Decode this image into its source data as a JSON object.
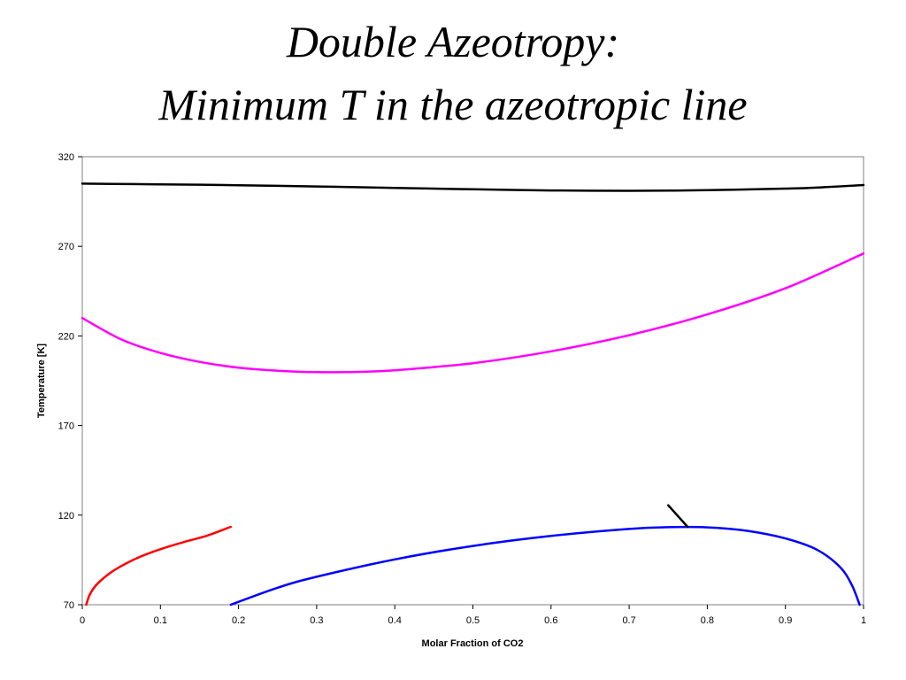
{
  "title_lines": [
    "Double Azeotropy:",
    "Minimum T in the azeotropic line"
  ],
  "chart_data": {
    "type": "line",
    "xlabel": "Molar Fraction of CO2",
    "ylabel": "Temperature [K]",
    "xlim": [
      0,
      1
    ],
    "ylim": [
      70,
      320
    ],
    "xticks": [
      "0",
      "0.1",
      "0.2",
      "0.3",
      "0.4",
      "0.5",
      "0.6",
      "0.7",
      "0.8",
      "0.9",
      "1"
    ],
    "yticks": [
      "70",
      "120",
      "170",
      "220",
      "270",
      "320"
    ],
    "grid": false,
    "series": [
      {
        "color": "#000000",
        "x": [
          0,
          0.1,
          0.2,
          0.3,
          0.4,
          0.5,
          0.6,
          0.7,
          0.8,
          0.9,
          0.95,
          1.0
        ],
        "y": [
          305,
          304.6,
          304.1,
          303.4,
          302.6,
          301.8,
          301.2,
          301.0,
          301.3,
          302.2,
          303.0,
          304.2
        ]
      },
      {
        "color": "#ff00ff",
        "x": [
          0,
          0.05,
          0.1,
          0.15,
          0.2,
          0.25,
          0.3,
          0.35,
          0.4,
          0.5,
          0.6,
          0.7,
          0.8,
          0.9,
          1.0
        ],
        "y": [
          230,
          218,
          210.5,
          205.5,
          202.3,
          200.6,
          199.8,
          199.9,
          200.8,
          204.8,
          211.4,
          220.4,
          232.0,
          246.6,
          266.0
        ]
      },
      {
        "color": "#ff0000",
        "x": [
          0.005,
          0.01,
          0.02,
          0.04,
          0.07,
          0.1,
          0.13,
          0.16,
          0.19
        ],
        "y": [
          70,
          76,
          82,
          89,
          96,
          101,
          105,
          108.6,
          113.5
        ]
      },
      {
        "color": "#0000ff",
        "x": [
          0.19,
          0.25,
          0.3,
          0.4,
          0.5,
          0.6,
          0.7,
          0.75,
          0.8,
          0.85,
          0.9,
          0.94,
          0.97,
          0.985,
          0.995
        ],
        "y": [
          70,
          79.5,
          85.6,
          95.3,
          102.8,
          108.4,
          112.3,
          113.3,
          113.2,
          111.3,
          107.0,
          100.8,
          91.0,
          81.0,
          70
        ]
      },
      {
        "color": "#000000",
        "x": [
          0.75,
          0.775
        ],
        "y": [
          125.5,
          113.4
        ]
      }
    ]
  }
}
